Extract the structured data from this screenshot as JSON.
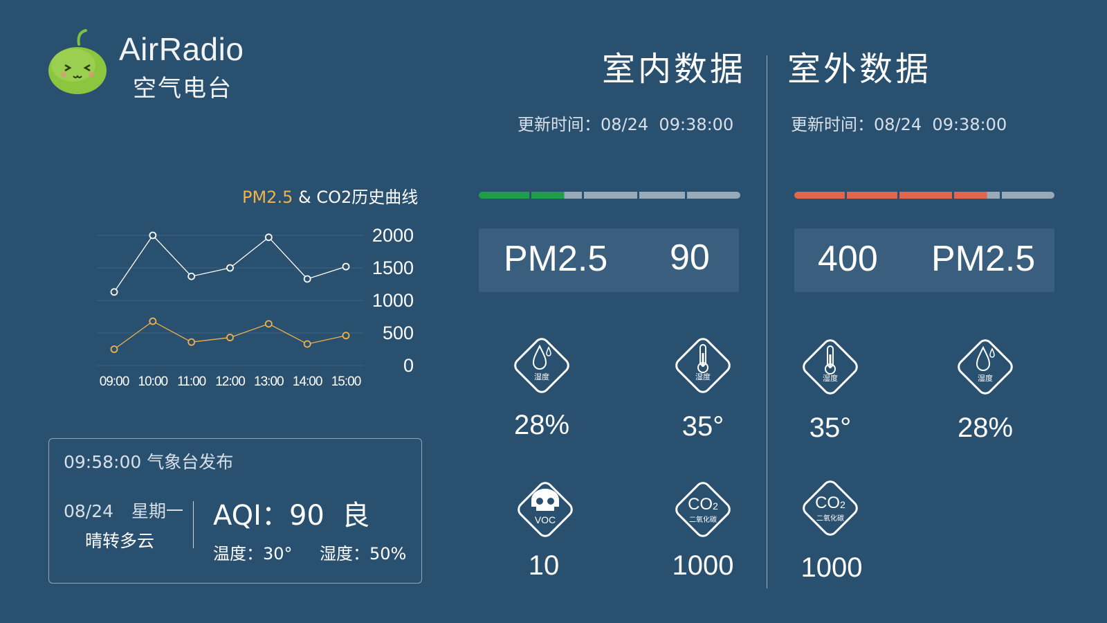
{
  "brand": {
    "name_en": "AirRadio",
    "name_zh": "空气电台"
  },
  "chart": {
    "title_pm": "PM2.5",
    "title_rest": " & CO2历史曲线"
  },
  "chart_data": {
    "type": "line",
    "title": "PM2.5 & CO2历史曲线",
    "categories": [
      "09:00",
      "10:00",
      "11:00",
      "12:00",
      "13:00",
      "14:00",
      "15:00"
    ],
    "series": [
      {
        "name": "CO2",
        "color": "#ffffff",
        "values": [
          1130,
          2000,
          1370,
          1500,
          1970,
          1330,
          1520
        ]
      },
      {
        "name": "PM2.5",
        "color": "#f0b24a",
        "values": [
          250,
          680,
          360,
          430,
          640,
          330,
          460
        ]
      }
    ],
    "ylim": [
      0,
      2000
    ],
    "yticks": [
      "2000",
      "1500",
      "1000",
      "500",
      "0"
    ],
    "grid": true
  },
  "weather": {
    "release": "09:58:00 气象台发布",
    "date": "08/24",
    "weekday": "星期一",
    "condition": "晴转多云",
    "aqi": "AQI：90  良",
    "temp": "温度：30°",
    "humidity": "湿度：50%"
  },
  "indoor": {
    "title": "室内数据",
    "updated": "更新时间：08/24  09:38:00",
    "level_fraction": 0.33,
    "bar_color": "#1f9e4a",
    "stat_label": "PM2.5",
    "stat_value": "90",
    "sensors": [
      {
        "icon": "humidity-drop-icon",
        "label": "湿度",
        "value": "28%"
      },
      {
        "icon": "thermometer-icon",
        "label": "湿度",
        "value": "35°"
      },
      {
        "icon": "voc-skull-icon",
        "label": "VOC",
        "value": "10"
      },
      {
        "icon": "co2-icon",
        "label": "二氧化碳",
        "value": "1000"
      }
    ]
  },
  "outdoor": {
    "title": "室外数据",
    "updated": "更新时间：08/24  09:38:00",
    "level_fraction": 0.74,
    "bar_color": "#e0674a",
    "stat_value": "400",
    "stat_label": "PM2.5",
    "sensors": [
      {
        "icon": "thermometer-icon",
        "label": "湿度",
        "value": "35°"
      },
      {
        "icon": "humidity-drop-icon",
        "label": "湿度",
        "value": "28%"
      },
      {
        "icon": "co2-icon",
        "label": "二氧化碳",
        "value": "1000"
      }
    ]
  },
  "colors": {
    "background": "#2a5070",
    "bar_rest": "#98a9b8",
    "pm_accent": "#f0b24a"
  }
}
